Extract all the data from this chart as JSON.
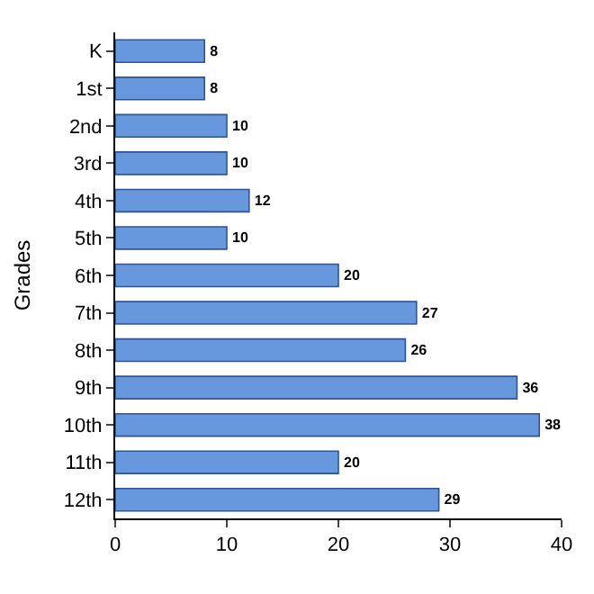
{
  "chart_data": {
    "type": "bar",
    "orientation": "horizontal",
    "ylabel": "Grades",
    "categories": [
      "K",
      "1st",
      "2nd",
      "3rd",
      "4th",
      "5th",
      "6th",
      "7th",
      "8th",
      "9th",
      "10th",
      "11th",
      "12th"
    ],
    "values": [
      8,
      8,
      10,
      10,
      12,
      10,
      20,
      27,
      26,
      36,
      38,
      20,
      29
    ],
    "color": "#6797dc",
    "xlim": [
      0,
      40
    ],
    "xticks": [
      0,
      10,
      20,
      30,
      40
    ],
    "data_labels": true,
    "grid": false
  }
}
